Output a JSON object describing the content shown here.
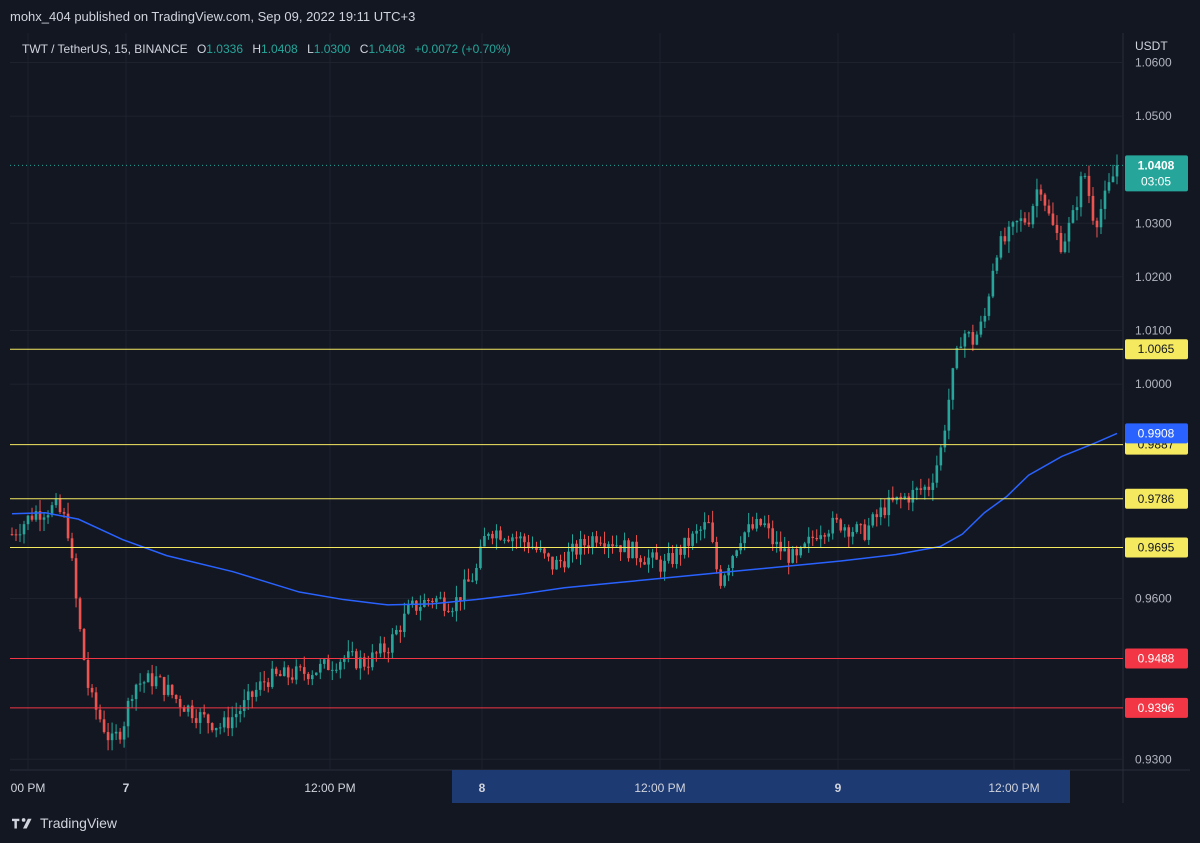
{
  "header": {
    "published_text": "mohx_404 published on TradingView.com, Sep 09, 2022 19:11 UTC+3"
  },
  "legend": {
    "symbol": "TWT / TetherUS, 15, BINANCE",
    "open_label": "O",
    "open": "1.0336",
    "high_label": "H",
    "high": "1.0408",
    "low_label": "L",
    "low": "1.0300",
    "close_label": "C",
    "close": "1.0408",
    "change": "+0.0072 (+0.70%)"
  },
  "footer": {
    "brand": "TradingView"
  },
  "colors": {
    "background": "#131722",
    "up": "#26a69a",
    "down": "#ef5350",
    "ma": "#2962ff",
    "support_line": "#f5e960",
    "red_line": "#f23645",
    "grid": "#1e222d"
  },
  "chart_data": {
    "type": "candlestick",
    "title": "TWT / TetherUS, 15, BINANCE",
    "price_axis_label": "USDT",
    "y_ticks": [
      "0.9300",
      "0.9600",
      "1.0000",
      "1.0100",
      "1.0200",
      "1.0300",
      "1.0500",
      "1.0600"
    ],
    "ylim": [
      0.928,
      1.0655
    ],
    "x_ticks": [
      "00 PM",
      "7",
      "12:00 PM",
      "8",
      "12:00 PM",
      "9",
      "12:00 PM"
    ],
    "x_highlight": [
      "8",
      "9"
    ],
    "last_price": {
      "value": "1.0408",
      "countdown": "03:05"
    },
    "horizontal_lines": [
      {
        "value": 1.0065,
        "label": "1.0065",
        "color": "yellow"
      },
      {
        "value": 0.9887,
        "label": "0.9887",
        "color": "yellow"
      },
      {
        "value": 0.9786,
        "label": "0.9786",
        "color": "yellow"
      },
      {
        "value": 0.9695,
        "label": "0.9695",
        "color": "yellow"
      },
      {
        "value": 0.9488,
        "label": "0.9488",
        "color": "red"
      },
      {
        "value": 0.9396,
        "label": "0.9396",
        "color": "red"
      }
    ],
    "moving_average": {
      "current_value": "0.9908",
      "points": [
        [
          0,
          0.9758
        ],
        [
          0.03,
          0.976
        ],
        [
          0.06,
          0.9748
        ],
        [
          0.1,
          0.971
        ],
        [
          0.14,
          0.968
        ],
        [
          0.2,
          0.965
        ],
        [
          0.26,
          0.9612
        ],
        [
          0.3,
          0.9598
        ],
        [
          0.34,
          0.9588
        ],
        [
          0.38,
          0.959
        ],
        [
          0.42,
          0.9598
        ],
        [
          0.46,
          0.9608
        ],
        [
          0.5,
          0.962
        ],
        [
          0.55,
          0.963
        ],
        [
          0.6,
          0.964
        ],
        [
          0.65,
          0.965
        ],
        [
          0.7,
          0.966
        ],
        [
          0.75,
          0.967
        ],
        [
          0.8,
          0.9682
        ],
        [
          0.84,
          0.9697
        ],
        [
          0.86,
          0.972
        ],
        [
          0.88,
          0.976
        ],
        [
          0.9,
          0.979
        ],
        [
          0.92,
          0.983
        ],
        [
          0.95,
          0.9865
        ],
        [
          0.98,
          0.989
        ],
        [
          1.0,
          0.9908
        ]
      ]
    },
    "price_path": [
      [
        0,
        0.972
      ],
      [
        0.02,
        0.976
      ],
      [
        0.04,
        0.977
      ],
      [
        0.05,
        0.974
      ],
      [
        0.06,
        0.956
      ],
      [
        0.07,
        0.942
      ],
      [
        0.09,
        0.933
      ],
      [
        0.1,
        0.936
      ],
      [
        0.11,
        0.944
      ],
      [
        0.13,
        0.945
      ],
      [
        0.15,
        0.941
      ],
      [
        0.17,
        0.938
      ],
      [
        0.19,
        0.936
      ],
      [
        0.21,
        0.94
      ],
      [
        0.23,
        0.945
      ],
      [
        0.26,
        0.946
      ],
      [
        0.28,
        0.947
      ],
      [
        0.3,
        0.949
      ],
      [
        0.32,
        0.948
      ],
      [
        0.34,
        0.951
      ],
      [
        0.36,
        0.958
      ],
      [
        0.38,
        0.96
      ],
      [
        0.4,
        0.959
      ],
      [
        0.42,
        0.965
      ],
      [
        0.43,
        0.973
      ],
      [
        0.45,
        0.972
      ],
      [
        0.47,
        0.97
      ],
      [
        0.49,
        0.966
      ],
      [
        0.51,
        0.969
      ],
      [
        0.53,
        0.972
      ],
      [
        0.55,
        0.97
      ],
      [
        0.57,
        0.968
      ],
      [
        0.59,
        0.966
      ],
      [
        0.61,
        0.97
      ],
      [
        0.63,
        0.974
      ],
      [
        0.64,
        0.963
      ],
      [
        0.66,
        0.972
      ],
      [
        0.68,
        0.974
      ],
      [
        0.69,
        0.97
      ],
      [
        0.71,
        0.967
      ],
      [
        0.73,
        0.973
      ],
      [
        0.75,
        0.974
      ],
      [
        0.77,
        0.972
      ],
      [
        0.79,
        0.977
      ],
      [
        0.81,
        0.979
      ],
      [
        0.83,
        0.981
      ],
      [
        0.84,
        0.987
      ],
      [
        0.85,
        1.0
      ],
      [
        0.86,
        1.01
      ],
      [
        0.87,
        1.008
      ],
      [
        0.88,
        1.012
      ],
      [
        0.89,
        1.025
      ],
      [
        0.9,
        1.027
      ],
      [
        0.91,
        1.03
      ],
      [
        0.92,
        1.031
      ],
      [
        0.93,
        1.038
      ],
      [
        0.94,
        1.03
      ],
      [
        0.95,
        1.026
      ],
      [
        0.96,
        1.031
      ],
      [
        0.97,
        1.04
      ],
      [
        0.98,
        1.03
      ],
      [
        0.99,
        1.035
      ],
      [
        1.0,
        1.0408
      ]
    ]
  }
}
